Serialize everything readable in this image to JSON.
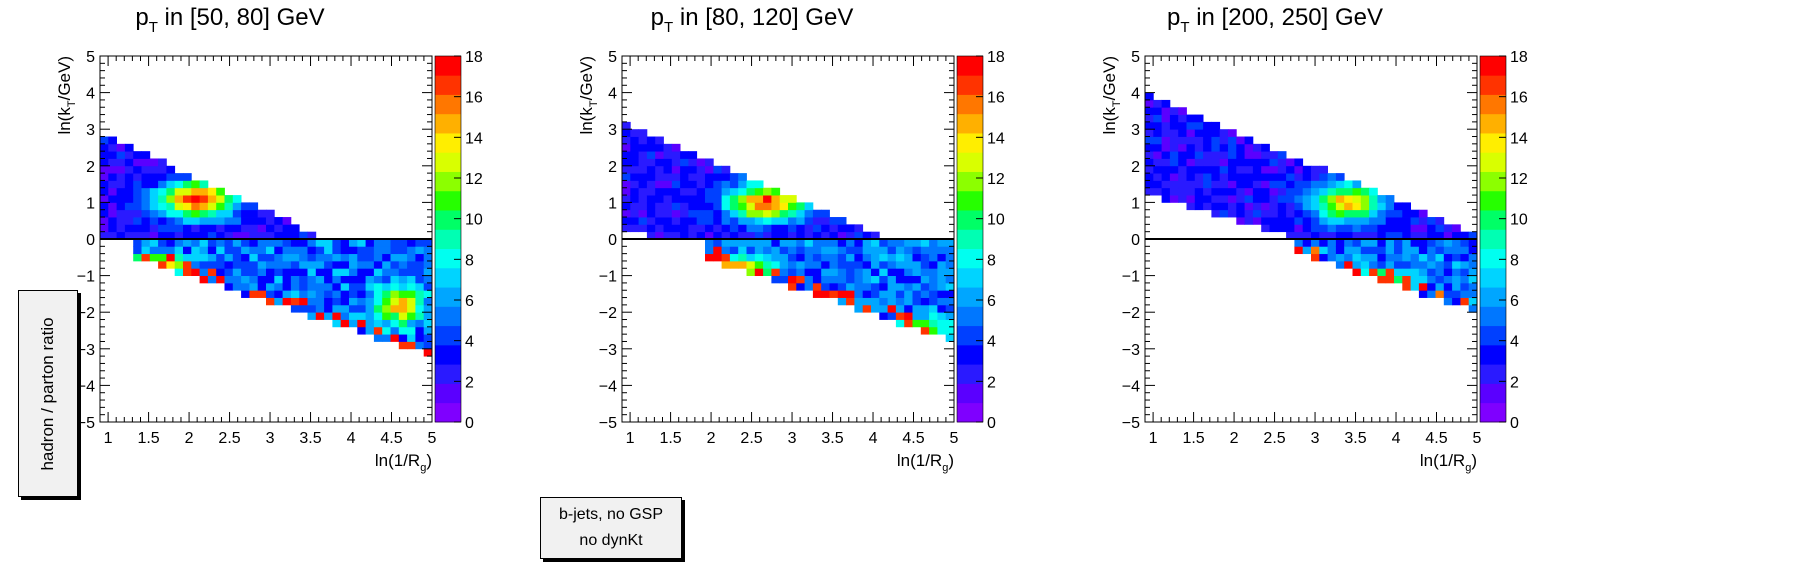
{
  "side_label": "hadron / parton ratio",
  "legend": {
    "line1": "b-jets, no GSP",
    "line2": "no dynKt"
  },
  "colors": {
    "reference_line": "#000000",
    "frame": "#000000"
  },
  "palette": [
    "#7f00ff",
    "#5a00ff",
    "#2a1aff",
    "#0000ff",
    "#0040ff",
    "#0077ff",
    "#00a6ff",
    "#00d4ff",
    "#00fff0",
    "#00ffb3",
    "#00ff66",
    "#26ff00",
    "#8cff00",
    "#d9ff00",
    "#ffee00",
    "#ffb000",
    "#ff7700",
    "#ff3300",
    "#ff0000"
  ],
  "chart_data": [
    {
      "type": "heatmap",
      "title_p": "p",
      "title_sub": "T",
      "title_rest": " in [50, 80] GeV",
      "xlabel": "ln(1/R",
      "xlabel_sub": "g",
      "xlabel_close": ")",
      "ylabel": "ln(k",
      "ylabel_sub": "T",
      "ylabel_close": "/GeV)",
      "xlim": [
        0.9,
        5.0
      ],
      "ylim": [
        -5,
        5
      ],
      "zlim": [
        0,
        18
      ],
      "reference_line_y": 0,
      "x_ticks": [
        "1",
        "1.5",
        "2",
        "2.5",
        "3",
        "3.5",
        "4",
        "4.5",
        "5"
      ],
      "y_ticks": [
        "−5",
        "−4",
        "−3",
        "−2",
        "−1",
        "0",
        "1",
        "2",
        "3",
        "4",
        "5"
      ],
      "z_ticks": [
        "0",
        "2",
        "4",
        "6",
        "8",
        "10",
        "12",
        "14",
        "16",
        "18"
      ],
      "upper_band": {
        "x_start": 0.9,
        "y_top_start": 2.9,
        "y_top_end": 0.1,
        "y_bottom": 0.3,
        "x_end": 3.6
      },
      "lower_band": {
        "x_start": 1.3,
        "y_top": 0.0,
        "y_bottom_start": -0.5,
        "y_bottom_end": -3.2,
        "x_end": 5.0
      },
      "hotspots": [
        {
          "x": 2.1,
          "y": 1.1,
          "peak": 18,
          "sx": 0.35,
          "sy": 0.35
        },
        {
          "x": 1.6,
          "y": -0.7,
          "peak": 17,
          "sx": 0.25,
          "sy": 0.2
        },
        {
          "x": 4.6,
          "y": -1.8,
          "peak": 16,
          "sx": 0.2,
          "sy": 0.35
        }
      ]
    },
    {
      "type": "heatmap",
      "title_p": "p",
      "title_sub": "T",
      "title_rest": " in [80, 120] GeV",
      "xlabel": "ln(1/R",
      "xlabel_sub": "g",
      "xlabel_close": ")",
      "ylabel": "ln(k",
      "ylabel_sub": "T",
      "ylabel_close": "/GeV)",
      "xlim": [
        0.9,
        5.0
      ],
      "ylim": [
        -5,
        5
      ],
      "zlim": [
        0,
        18
      ],
      "reference_line_y": 0,
      "x_ticks": [
        "1",
        "1.5",
        "2",
        "2.5",
        "3",
        "3.5",
        "4",
        "4.5",
        "5"
      ],
      "y_ticks": [
        "−5",
        "−4",
        "−3",
        "−2",
        "−1",
        "0",
        "1",
        "2",
        "3",
        "4",
        "5"
      ],
      "z_ticks": [
        "0",
        "2",
        "4",
        "6",
        "8",
        "10",
        "12",
        "14",
        "16",
        "18"
      ],
      "upper_band": {
        "x_start": 0.9,
        "y_top_start": 3.2,
        "y_top_end": 0.1,
        "y_bottom": 0.6,
        "x_end": 4.1
      },
      "lower_band": {
        "x_start": 1.9,
        "y_top": 0.0,
        "y_bottom_start": -0.5,
        "y_bottom_end": -2.8,
        "x_end": 5.0
      },
      "hotspots": [
        {
          "x": 2.7,
          "y": 1.0,
          "peak": 18,
          "sx": 0.35,
          "sy": 0.35
        },
        {
          "x": 2.3,
          "y": -0.8,
          "peak": 17,
          "sx": 0.3,
          "sy": 0.2
        },
        {
          "x": 4.6,
          "y": -2.5,
          "peak": 14,
          "sx": 0.2,
          "sy": 0.25
        }
      ]
    },
    {
      "type": "heatmap",
      "title_p": "p",
      "title_sub": "T",
      "title_rest": " in [200, 250] GeV",
      "xlabel": "ln(1/R",
      "xlabel_sub": "g",
      "xlabel_close": ")",
      "ylabel": "ln(k",
      "ylabel_sub": "T",
      "ylabel_close": "/GeV)",
      "xlim": [
        0.9,
        5.0
      ],
      "ylim": [
        -5,
        5
      ],
      "zlim": [
        0,
        18
      ],
      "reference_line_y": 0,
      "x_ticks": [
        "1",
        "1.5",
        "2",
        "2.5",
        "3",
        "3.5",
        "4",
        "4.5",
        "5"
      ],
      "y_ticks": [
        "−5",
        "−4",
        "−3",
        "−2",
        "−1",
        "0",
        "1",
        "2",
        "3",
        "4",
        "5"
      ],
      "z_ticks": [
        "0",
        "2",
        "4",
        "6",
        "8",
        "10",
        "12",
        "14",
        "16",
        "18"
      ],
      "upper_band": {
        "x_start": 0.9,
        "y_top_start": 4.0,
        "y_top_end": 0.1,
        "y_bottom": 1.6,
        "x_end": 5.0
      },
      "lower_band": {
        "x_start": 2.7,
        "y_top": 0.0,
        "y_bottom_start": -0.3,
        "y_bottom_end": -2.0,
        "x_end": 5.0
      },
      "hotspots": [
        {
          "x": 3.4,
          "y": 1.0,
          "peak": 16,
          "sx": 0.3,
          "sy": 0.35
        },
        {
          "x": 3.6,
          "y": -1.2,
          "peak": 17,
          "sx": 0.3,
          "sy": 0.25
        }
      ]
    }
  ]
}
